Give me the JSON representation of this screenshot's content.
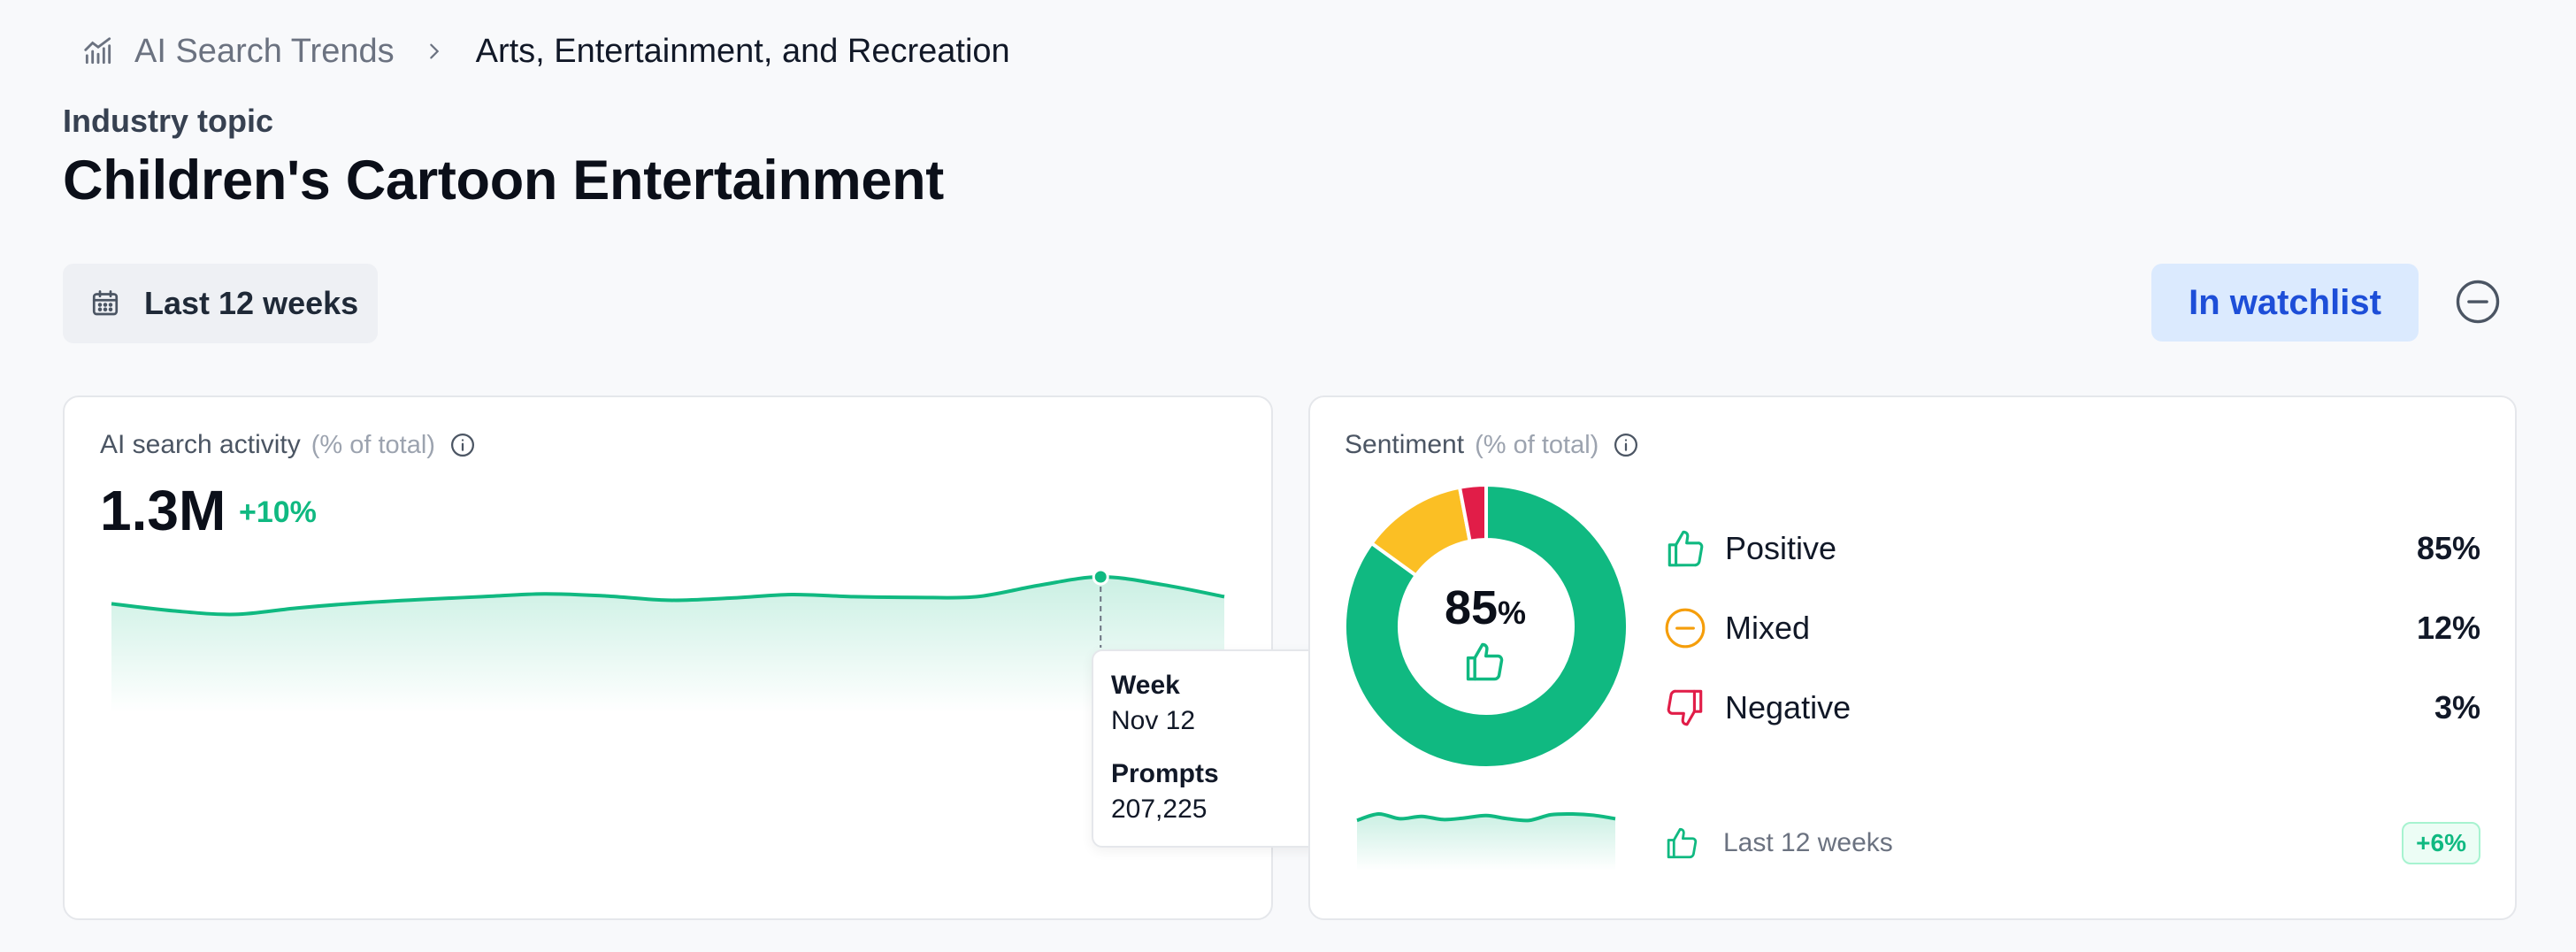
{
  "breadcrumb": {
    "parent": "AI Search Trends",
    "current": "Arts, Entertainment, and Recreation"
  },
  "header": {
    "eyebrow": "Industry topic",
    "title": "Children's Cartoon Entertainment"
  },
  "toolbar": {
    "date_range": "Last 12 weeks",
    "watchlist_label": "In watchlist"
  },
  "activity_card": {
    "title": "AI search activity",
    "subtitle": "(% of total)",
    "value": "1.3M",
    "delta": "+10%",
    "tooltip": {
      "week_label": "Week",
      "week_value": "Nov 12",
      "prompts_label": "Prompts",
      "prompts_value": "207,225"
    }
  },
  "sentiment_card": {
    "title": "Sentiment",
    "subtitle": "(% of total)",
    "center_value": "85",
    "center_unit": "%",
    "items": [
      {
        "label": "Positive",
        "value": "85%"
      },
      {
        "label": "Mixed",
        "value": "12%"
      },
      {
        "label": "Negative",
        "value": "3%"
      }
    ],
    "footer_label": "Last 12 weeks",
    "footer_delta": "+6%"
  },
  "colors": {
    "positive": "#10b981",
    "mixed": "#fbbf24",
    "negative": "#e11d48",
    "accent": "#1d4ed8"
  },
  "chart_data": [
    {
      "type": "area",
      "series": [
        {
          "values": [
            0.62,
            0.52,
            0.47,
            0.56,
            0.63,
            0.68,
            0.72,
            0.76,
            0.73,
            0.67,
            0.7,
            0.75,
            0.72,
            0.71,
            0.72,
            0.88,
            1.0,
            0.89,
            0.72
          ]
        }
      ],
      "highlight_index": 16,
      "grid": false
    },
    {
      "type": "pie",
      "categories": [
        "Positive",
        "Mixed",
        "Negative"
      ],
      "values": [
        85,
        12,
        3
      ]
    },
    {
      "type": "area",
      "series": [
        {
          "values": [
            0.6,
            1.0,
            0.7,
            0.85,
            0.65,
            0.75,
            0.9,
            0.7,
            0.6,
            0.95,
            1.0,
            0.92,
            0.7
          ]
        }
      ],
      "grid": false
    }
  ]
}
